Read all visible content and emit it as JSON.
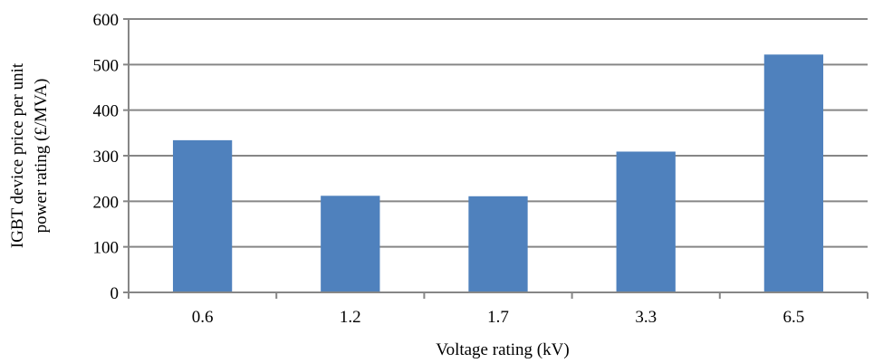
{
  "chart_data": {
    "type": "bar",
    "categories": [
      "0.6",
      "1.2",
      "1.7",
      "3.3",
      "6.5"
    ],
    "values": [
      334,
      212,
      211,
      309,
      522
    ],
    "xlabel": "Voltage rating (kV)",
    "ylabel_lines": [
      "IGBT device price per unit",
      "power rating (£/MVA)"
    ],
    "ylim": [
      0,
      600
    ],
    "yticks": [
      "0",
      "100",
      "200",
      "300",
      "400",
      "500",
      "600"
    ],
    "grid": true,
    "legend": "none",
    "bar_color": "#4F81BD",
    "grid_color": "#868686"
  }
}
